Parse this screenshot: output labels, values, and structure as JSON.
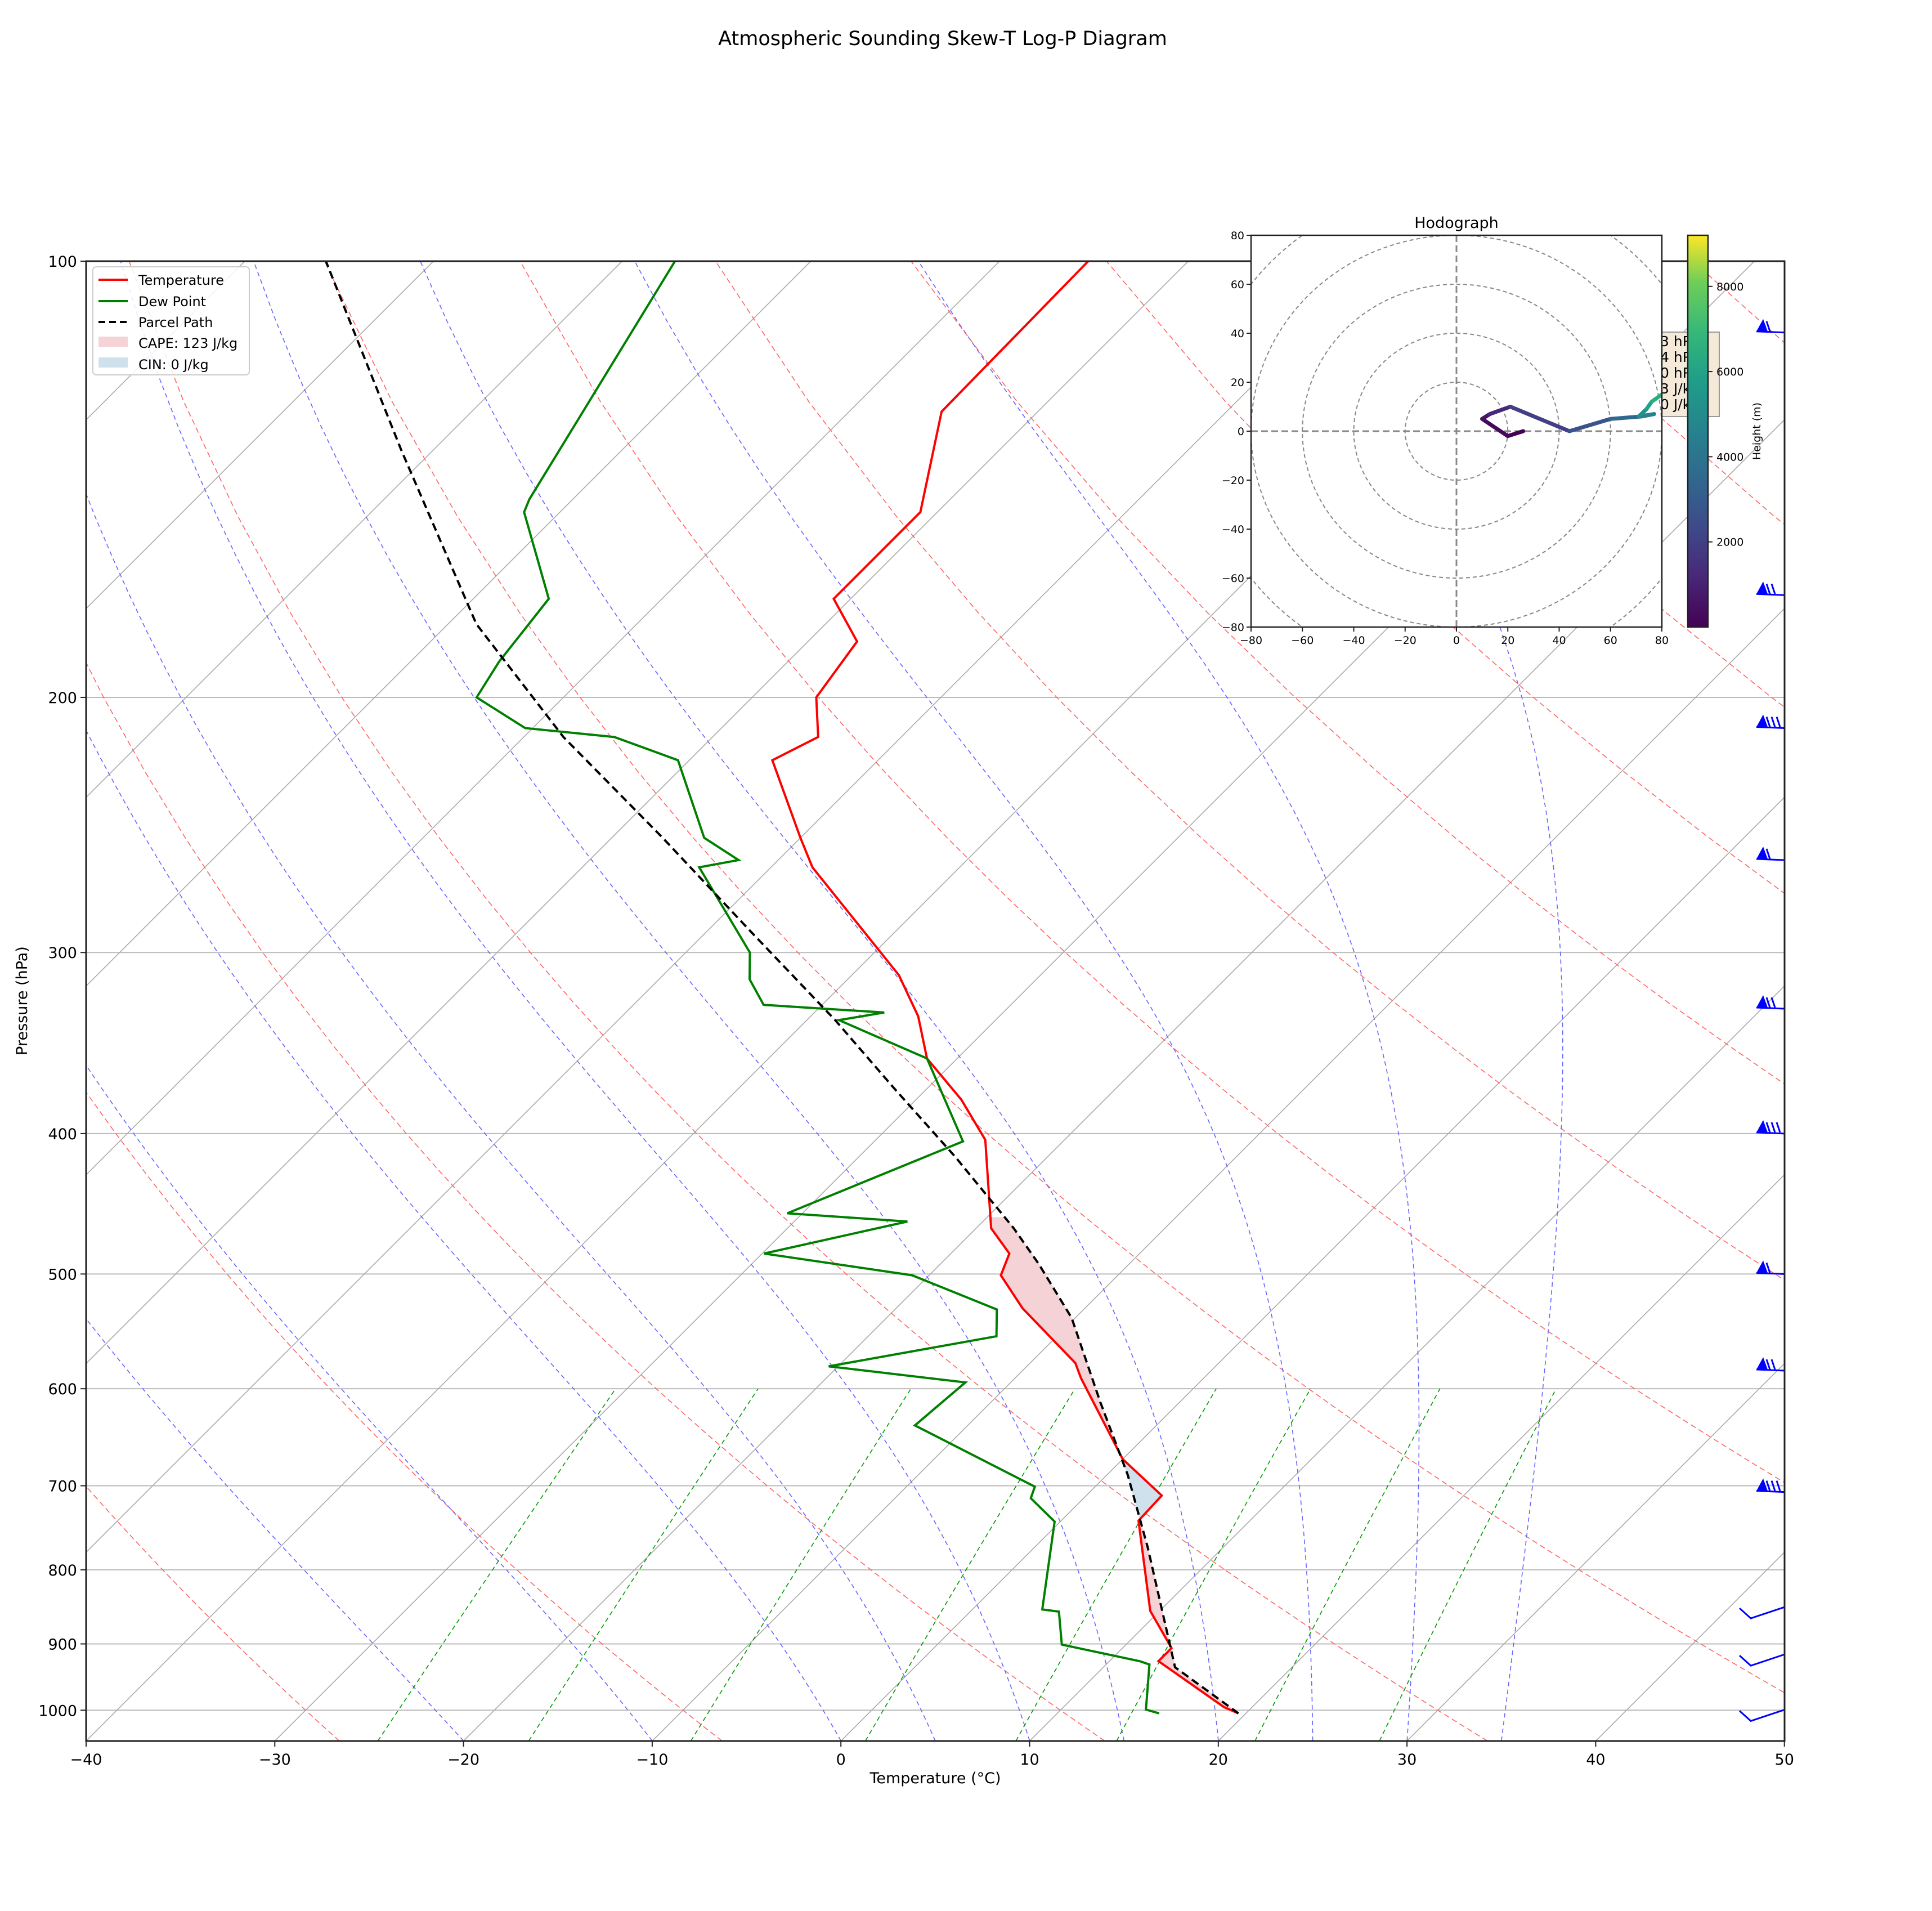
{
  "figure": {
    "title": "Atmospheric Sounding Skew-T Log-P Diagram"
  },
  "skewt": {
    "xlabel": "Temperature (°C)",
    "ylabel": "Pressure (hPa)",
    "x_ticks": [
      -40,
      -30,
      -20,
      -10,
      0,
      10,
      20,
      30,
      40,
      50
    ],
    "y_ticks": [
      100,
      200,
      300,
      400,
      500,
      600,
      700,
      800,
      900,
      1000
    ],
    "legend": {
      "temperature": "Temperature",
      "dewpoint": "Dew Point",
      "parcel": "Parcel Path",
      "cape": "CAPE: 123 J/kg",
      "cin": "CIN: 0 J/kg"
    },
    "info_box_fragments": [
      "3 hP",
      "4 hP",
      "0 hP",
      "3 J/k",
      "0 J/k"
    ]
  },
  "hodograph": {
    "title": "Hodograph",
    "x_ticks": [
      -80,
      -60,
      -40,
      -20,
      0,
      20,
      40,
      60,
      80
    ],
    "y_ticks": [
      80,
      60,
      40,
      20,
      0,
      -20,
      -40,
      -60,
      -80
    ],
    "colorbar_label": "Height (m)",
    "colorbar_ticks": [
      2000,
      4000,
      6000,
      8000
    ]
  },
  "chart_data": [
    {
      "type": "line",
      "title": "Atmospheric Sounding Skew-T Log-P Diagram",
      "xlabel": "Temperature (°C)",
      "ylabel": "Pressure (hPa)",
      "xlim": [
        -40,
        50
      ],
      "ylim": [
        1050,
        100
      ],
      "yscale": "log",
      "grid": true,
      "legend_position": "upper left",
      "series": [
        {
          "name": "Temperature",
          "color": "#ff0000",
          "pressure": [
            1005,
            995,
            925,
            906,
            854,
            740,
            711,
            671,
            590,
            576,
            528,
            501,
            484,
            465,
            404,
            379,
            355,
            332,
            311,
            262,
            250,
            221,
            213,
            200,
            183,
            171,
            149,
            127,
            100
          ],
          "values": [
            19.6,
            18.5,
            12.6,
            12.6,
            9.5,
            4.1,
            4.0,
            0.0,
            -6.5,
            -7.6,
            -13.3,
            -16.2,
            -16.9,
            -19.2,
            -24.2,
            -27.6,
            -31.6,
            -34.3,
            -37.5,
            -47.8,
            -50.0,
            -55.6,
            -54.4,
            -56.6,
            -57.4,
            -60.9,
            -60.9,
            -65.1,
            -65.3
          ]
        },
        {
          "name": "Dew Point",
          "color": "#008000",
          "pressure": [
            1005,
            999,
            930,
            925,
            901,
            855,
            852,
            741,
            714,
            701,
            636,
            594,
            579,
            552,
            529,
            501,
            484,
            460,
            454,
            405,
            355,
            334,
            330,
            326,
            313,
            300,
            262,
            259,
            250,
            221,
            213,
            210,
            200,
            189,
            171,
            149,
            146,
            100
          ],
          "values": [
            15.4,
            14.5,
            12.3,
            11.6,
            6.6,
            4.7,
            3.7,
            -0.3,
            -2.8,
            -3.2,
            -12.8,
            -12.4,
            -20.5,
            -13.2,
            -14.6,
            -20.9,
            -29.9,
            -24.0,
            -30.8,
            -25.3,
            -31.6,
            -38.3,
            -36.3,
            -43.1,
            -45.2,
            -46.6,
            -53.8,
            -52.1,
            -55.1,
            -60.6,
            -65.2,
            -70.4,
            -74.6,
            -75.3,
            -76.0,
            -81.9,
            -82.3,
            -87.2
          ]
        },
        {
          "name": "Parcel Path",
          "color": "#000000",
          "style": "dashed",
          "pressure": [
            1005,
            934,
            772,
            688,
            613,
            536,
            492,
            465,
            415,
            372,
            334,
            290,
            250,
            213,
            178,
            135,
            100
          ],
          "values": [
            19.6,
            13.8,
            6.0,
            1.1,
            -4.2,
            -10.2,
            -14.8,
            -18.0,
            -24.9,
            -31.8,
            -38.5,
            -47.7,
            -57.3,
            -67.9,
            -78.5,
            -91.7,
            -105.7
          ]
        }
      ],
      "shaded": [
        {
          "name": "CAPE: 123 J/kg",
          "color": "#f4d2d6"
        },
        {
          "name": "CIN: 0 J/kg",
          "color": "#cfe1ec"
        }
      ],
      "wind_barb_pressures": [
        112,
        170,
        210,
        259,
        328,
        400,
        500,
        583,
        707,
        858,
        925,
        1010
      ]
    },
    {
      "type": "line",
      "title": "Hodograph",
      "xlim": [
        -80,
        80
      ],
      "ylim": [
        -80,
        80
      ],
      "rings": [
        20,
        40,
        60,
        80
      ],
      "colorbar": {
        "label": "Height (m)",
        "cmap": "viridis",
        "range": [
          0,
          9200
        ],
        "ticks": [
          2000,
          4000,
          6000,
          8000
        ]
      },
      "u": [
        26,
        20,
        10,
        13,
        21,
        44,
        60,
        72,
        77,
        71,
        74,
        76,
        80
      ],
      "v": [
        0,
        -2,
        5,
        7,
        10,
        0,
        5,
        6,
        7,
        6,
        9,
        12,
        15
      ]
    }
  ]
}
